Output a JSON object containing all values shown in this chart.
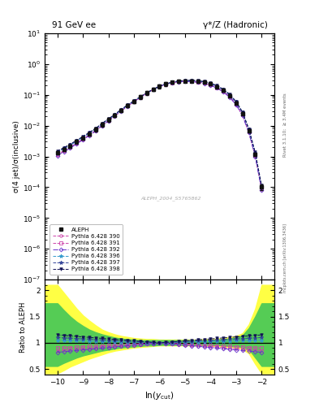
{
  "title_left": "91 GeV ee",
  "title_right": "γ*/Z (Hadronic)",
  "ylabel_main": "σ(4 jet)/σ(inclusive)",
  "ylabel_ratio": "Ratio to ALEPH",
  "xlabel": "ln(y_{cut})",
  "right_label": "Rivet 3.1.10;  ≥ 3.4M events",
  "watermark": "mcplots.cern.ch [arXiv:1306.3436]",
  "analysis_label": "ALEPH_2004_S5765862",
  "main_ylim": [
    1e-07,
    10.0
  ],
  "ratio_ylim": [
    0.4,
    2.2
  ],
  "ratio_yticks": [
    0.5,
    1.0,
    1.5,
    2.0
  ],
  "ratio_yticklabels": [
    "0.5",
    "1",
    "1.5",
    "2"
  ],
  "xlim": [
    -10.5,
    -1.5
  ],
  "xticks": [
    -10,
    -9,
    -8,
    -7,
    -6,
    -5,
    -4,
    -3,
    -2
  ],
  "aleph": {
    "label": "ALEPH",
    "color": "#111111",
    "marker": "s",
    "markersize": 3.5,
    "x": [
      -10.0,
      -9.75,
      -9.5,
      -9.25,
      -9.0,
      -8.75,
      -8.5,
      -8.25,
      -8.0,
      -7.75,
      -7.5,
      -7.25,
      -7.0,
      -6.75,
      -6.5,
      -6.25,
      -6.0,
      -5.75,
      -5.5,
      -5.25,
      -5.0,
      -4.75,
      -4.5,
      -4.25,
      -4.0,
      -3.75,
      -3.5,
      -3.25,
      -3.0,
      -2.75,
      -2.5,
      -2.25,
      -2.0
    ],
    "y": [
      0.0013,
      0.0017,
      0.0022,
      0.003,
      0.004,
      0.0055,
      0.0075,
      0.011,
      0.0155,
      0.022,
      0.032,
      0.045,
      0.062,
      0.085,
      0.115,
      0.15,
      0.19,
      0.225,
      0.255,
      0.275,
      0.285,
      0.285,
      0.275,
      0.255,
      0.225,
      0.185,
      0.14,
      0.095,
      0.055,
      0.025,
      0.007,
      0.0012,
      0.0001
    ],
    "yerr": [
      0.00015,
      0.0002,
      0.00025,
      0.00035,
      0.0005,
      0.0007,
      0.001,
      0.0015,
      0.002,
      0.003,
      0.004,
      0.006,
      0.008,
      0.011,
      0.015,
      0.02,
      0.025,
      0.028,
      0.03,
      0.03,
      0.03,
      0.03,
      0.028,
      0.025,
      0.022,
      0.018,
      0.014,
      0.009,
      0.0055,
      0.0025,
      0.0008,
      0.00015,
      2e-05
    ]
  },
  "mc_series": [
    {
      "label": "Pythia 6.428 390",
      "color": "#cc44aa",
      "marker": "o",
      "markersize": 2.5,
      "linestyle": "--",
      "lw": 0.7,
      "ratio_scale": 0.85
    },
    {
      "label": "Pythia 6.428 391",
      "color": "#cc44aa",
      "marker": "s",
      "markersize": 2.5,
      "linestyle": "--",
      "lw": 0.7,
      "ratio_scale": 0.9
    },
    {
      "label": "Pythia 6.428 392",
      "color": "#6633cc",
      "marker": "D",
      "markersize": 2.5,
      "linestyle": "-.",
      "lw": 0.7,
      "ratio_scale": 0.82
    },
    {
      "label": "Pythia 6.428 396",
      "color": "#3399cc",
      "marker": "*",
      "markersize": 3.5,
      "linestyle": "--",
      "lw": 0.7,
      "ratio_scale": 1.05
    },
    {
      "label": "Pythia 6.428 397",
      "color": "#334499",
      "marker": "*",
      "markersize": 3.5,
      "linestyle": "--",
      "lw": 0.7,
      "ratio_scale": 1.1
    },
    {
      "label": "Pythia 6.428 398",
      "color": "#111155",
      "marker": "v",
      "markersize": 2.5,
      "linestyle": "--",
      "lw": 0.7,
      "ratio_scale": 1.15
    }
  ],
  "band_x": [
    -10.5,
    -10.0,
    -9.75,
    -9.5,
    -9.25,
    -9.0,
    -8.75,
    -8.5,
    -8.25,
    -8.0,
    -7.75,
    -7.5,
    -7.25,
    -7.0,
    -6.75,
    -6.5,
    -6.25,
    -6.0,
    -5.75,
    -5.5,
    -5.25,
    -5.0,
    -4.75,
    -4.5,
    -4.25,
    -4.0,
    -3.75,
    -3.5,
    -3.25,
    -3.0,
    -2.75,
    -2.5,
    -2.25,
    -2.0,
    -1.5
  ],
  "band_yellow_lo": [
    0.42,
    0.42,
    0.48,
    0.55,
    0.6,
    0.65,
    0.7,
    0.74,
    0.78,
    0.82,
    0.85,
    0.87,
    0.89,
    0.91,
    0.92,
    0.93,
    0.94,
    0.95,
    0.95,
    0.95,
    0.95,
    0.95,
    0.95,
    0.95,
    0.95,
    0.94,
    0.94,
    0.93,
    0.92,
    0.91,
    0.88,
    0.8,
    0.6,
    0.42,
    0.42
  ],
  "band_yellow_hi": [
    2.1,
    2.1,
    1.95,
    1.8,
    1.65,
    1.52,
    1.42,
    1.33,
    1.25,
    1.2,
    1.16,
    1.13,
    1.11,
    1.09,
    1.08,
    1.07,
    1.07,
    1.06,
    1.06,
    1.06,
    1.06,
    1.06,
    1.06,
    1.06,
    1.07,
    1.07,
    1.08,
    1.09,
    1.11,
    1.13,
    1.18,
    1.35,
    1.65,
    2.1,
    2.1
  ],
  "band_green_lo": [
    0.56,
    0.56,
    0.62,
    0.67,
    0.72,
    0.76,
    0.79,
    0.82,
    0.85,
    0.87,
    0.89,
    0.91,
    0.92,
    0.93,
    0.94,
    0.95,
    0.95,
    0.96,
    0.96,
    0.96,
    0.96,
    0.96,
    0.96,
    0.96,
    0.96,
    0.96,
    0.96,
    0.95,
    0.94,
    0.93,
    0.92,
    0.88,
    0.72,
    0.56,
    0.56
  ],
  "band_green_hi": [
    1.75,
    1.75,
    1.62,
    1.5,
    1.4,
    1.32,
    1.25,
    1.2,
    1.16,
    1.13,
    1.1,
    1.08,
    1.07,
    1.06,
    1.05,
    1.05,
    1.05,
    1.05,
    1.05,
    1.05,
    1.05,
    1.05,
    1.05,
    1.05,
    1.05,
    1.05,
    1.06,
    1.07,
    1.08,
    1.1,
    1.14,
    1.28,
    1.5,
    1.75,
    1.75
  ]
}
